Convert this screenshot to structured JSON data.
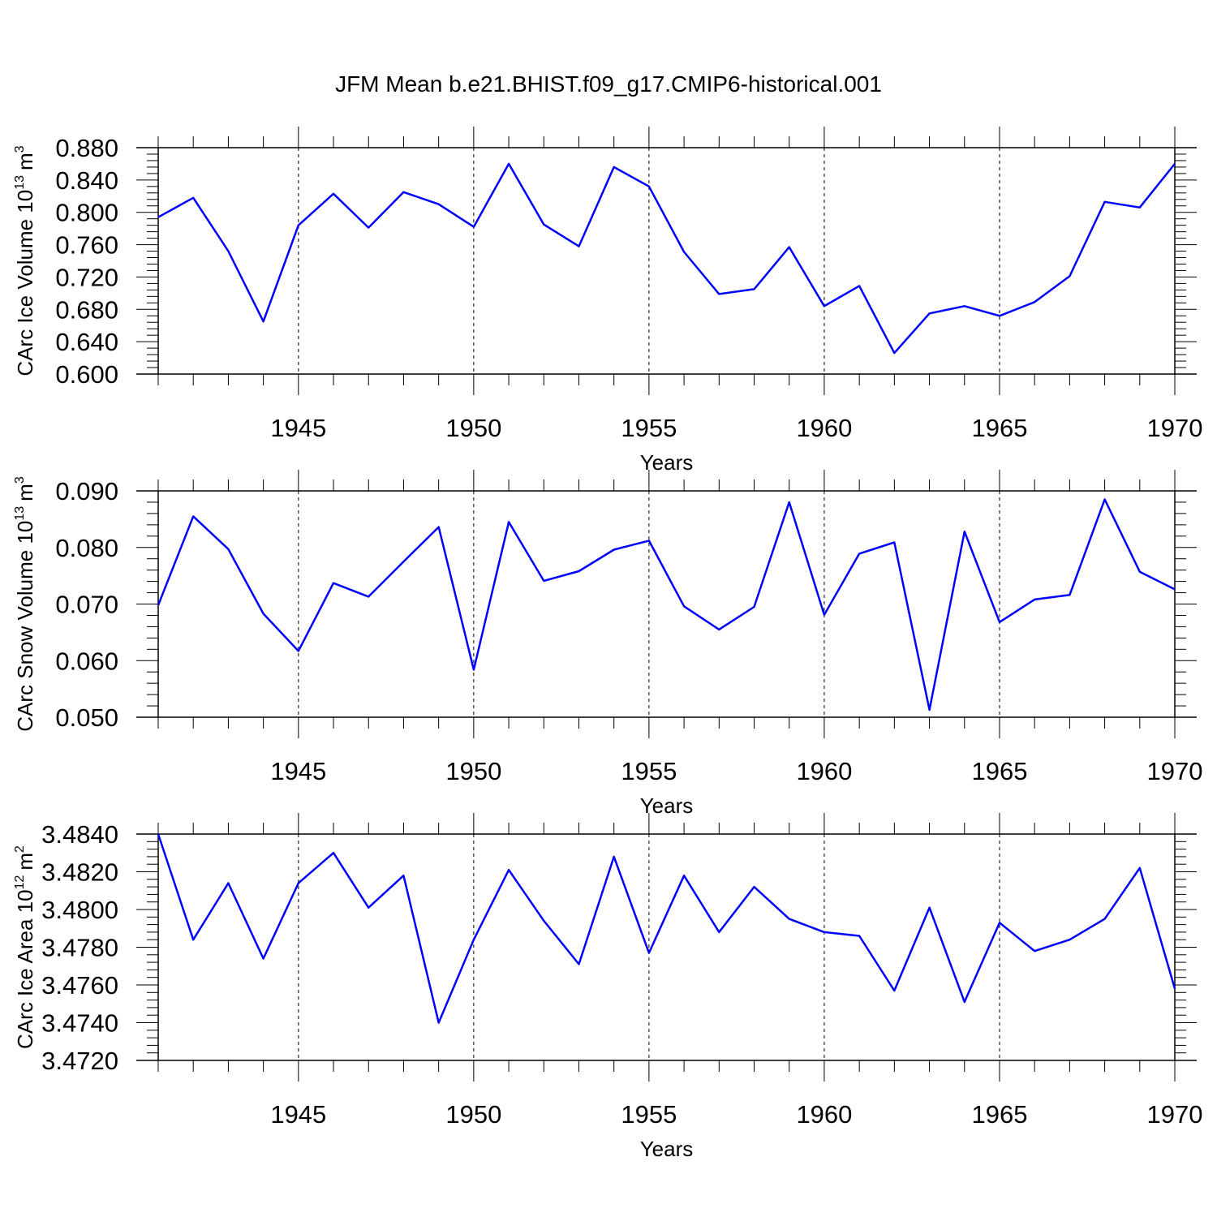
{
  "title": "JFM Mean b.e21.BHIST.f09_g17.CMIP6-historical.001",
  "line_color": "#0000ff",
  "chart_data": [
    {
      "type": "line",
      "xlabel": "Years",
      "ylabel": "CArc Ice Volume 10",
      "ylabel_exp": "13",
      "ylabel_unit": "m",
      "ylabel_unit_exp": "3",
      "xlim": [
        1941,
        1970
      ],
      "ylim": [
        0.6,
        0.88
      ],
      "x_ticks": [
        1945,
        1950,
        1955,
        1960,
        1965,
        1970
      ],
      "y_ticks": [
        "0.600",
        "0.640",
        "0.680",
        "0.720",
        "0.760",
        "0.800",
        "0.840",
        "0.880"
      ],
      "x": [
        1941,
        1942,
        1943,
        1944,
        1945,
        1946,
        1947,
        1948,
        1949,
        1950,
        1951,
        1952,
        1953,
        1954,
        1955,
        1956,
        1957,
        1958,
        1959,
        1960,
        1961,
        1962,
        1963,
        1964,
        1965,
        1966,
        1967,
        1968,
        1969,
        1970
      ],
      "values": [
        0.794,
        0.818,
        0.752,
        0.665,
        0.784,
        0.823,
        0.781,
        0.825,
        0.81,
        0.782,
        0.86,
        0.785,
        0.758,
        0.856,
        0.832,
        0.751,
        0.699,
        0.705,
        0.757,
        0.684,
        0.709,
        0.626,
        0.675,
        0.684,
        0.672,
        0.689,
        0.721,
        0.813,
        0.806,
        0.86
      ]
    },
    {
      "type": "line",
      "xlabel": "Years",
      "ylabel": "CArc Snow Volume 10",
      "ylabel_exp": "13",
      "ylabel_unit": "m",
      "ylabel_unit_exp": "3",
      "xlim": [
        1941,
        1970
      ],
      "ylim": [
        0.05,
        0.09
      ],
      "x_ticks": [
        1945,
        1950,
        1955,
        1960,
        1965,
        1970
      ],
      "y_ticks": [
        "0.050",
        "0.060",
        "0.070",
        "0.080",
        "0.090"
      ],
      "x": [
        1941,
        1942,
        1943,
        1944,
        1945,
        1946,
        1947,
        1948,
        1949,
        1950,
        1951,
        1952,
        1953,
        1954,
        1955,
        1956,
        1957,
        1958,
        1959,
        1960,
        1961,
        1962,
        1963,
        1964,
        1965,
        1966,
        1967,
        1968,
        1969,
        1970
      ],
      "values": [
        0.0698,
        0.0855,
        0.0797,
        0.0683,
        0.0617,
        0.0737,
        0.0713,
        0.0775,
        0.0836,
        0.0584,
        0.0845,
        0.0741,
        0.0758,
        0.0796,
        0.0812,
        0.0696,
        0.0655,
        0.0695,
        0.088,
        0.0681,
        0.0789,
        0.0809,
        0.0513,
        0.0828,
        0.0668,
        0.0708,
        0.0716,
        0.0885,
        0.0757,
        0.0726
      ]
    },
    {
      "type": "line",
      "xlabel": "Years",
      "ylabel": "CArc Ice Area 10",
      "ylabel_exp": "12",
      "ylabel_unit": "m",
      "ylabel_unit_exp": "2",
      "xlim": [
        1941,
        1970
      ],
      "ylim": [
        3.472,
        3.484
      ],
      "x_ticks": [
        1945,
        1950,
        1955,
        1960,
        1965,
        1970
      ],
      "y_ticks": [
        "3.4720",
        "3.4740",
        "3.4760",
        "3.4780",
        "3.4800",
        "3.4820",
        "3.4840"
      ],
      "x": [
        1941,
        1942,
        1943,
        1944,
        1945,
        1946,
        1947,
        1948,
        1949,
        1950,
        1951,
        1952,
        1953,
        1954,
        1955,
        1956,
        1957,
        1958,
        1959,
        1960,
        1961,
        1962,
        1963,
        1964,
        1965,
        1966,
        1967,
        1968,
        1969,
        1970
      ],
      "values": [
        3.484,
        3.4784,
        3.4814,
        3.4774,
        3.4814,
        3.483,
        3.4801,
        3.4818,
        3.474,
        3.4784,
        3.4821,
        3.4794,
        3.4771,
        3.4828,
        3.4777,
        3.4818,
        3.4788,
        3.4812,
        3.4795,
        3.4788,
        3.4786,
        3.4757,
        3.4801,
        3.4751,
        3.4793,
        3.4778,
        3.4784,
        3.4795,
        3.4822,
        3.4758
      ]
    }
  ]
}
